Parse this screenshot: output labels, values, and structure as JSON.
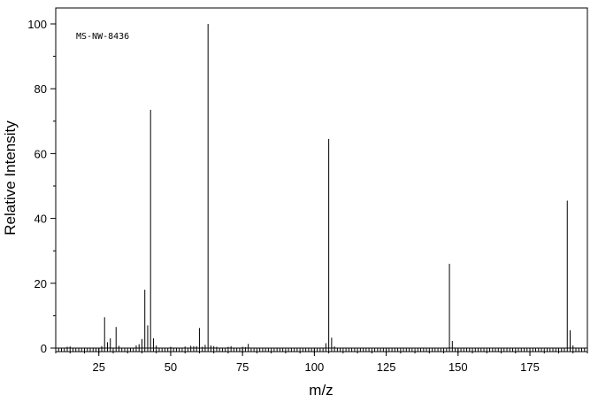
{
  "chart_data": {
    "type": "bar",
    "title": "",
    "annotation": "MS-NW-8436",
    "xlabel": "m/z",
    "ylabel": "Relative Intensity",
    "xlim": [
      10,
      195
    ],
    "ylim": [
      0,
      105
    ],
    "x_ticks": [
      25,
      50,
      75,
      100,
      125,
      150,
      175
    ],
    "y_ticks": [
      0,
      20,
      40,
      60,
      80,
      100
    ],
    "x_minor_step": 1,
    "x_minor_long_every": 5,
    "grid": false,
    "series": [
      {
        "x": [
          14,
          15,
          26,
          27,
          28,
          29,
          31,
          32,
          38,
          39,
          40,
          41,
          42,
          43,
          44,
          45,
          50,
          55,
          57,
          58,
          59,
          60,
          61,
          62,
          63,
          64,
          65,
          66,
          70,
          71,
          75,
          76,
          77,
          104,
          105,
          106,
          107,
          147,
          148,
          188,
          189,
          190
        ],
        "values": [
          0.4,
          0.5,
          0.6,
          9.5,
          1.8,
          3.0,
          6.5,
          0.7,
          0.8,
          1.2,
          2.8,
          18.0,
          7.0,
          73.5,
          3.0,
          0.8,
          0.4,
          0.5,
          0.7,
          0.6,
          0.6,
          6.2,
          0.4,
          1.0,
          100,
          0.8,
          0.6,
          0.4,
          0.4,
          0.6,
          0.4,
          0.3,
          1.3,
          1.5,
          64.5,
          3.2,
          0.5,
          26.0,
          2.2,
          45.5,
          5.5,
          0.8
        ]
      }
    ]
  }
}
